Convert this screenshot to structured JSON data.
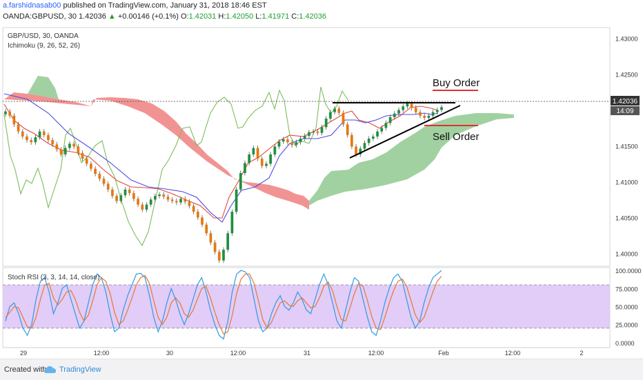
{
  "header": {
    "author": "a.farshidnasab00",
    "published_text": "published on TradingView.com, January 31, 2018 18:46 EST",
    "symbol": "OANDA:GBPUSD, 30",
    "last": "1.42036",
    "change": "+0.00146 (+0.1%)",
    "o_label": "O:",
    "o": "1.42031",
    "h_label": "H:",
    "h": "1.42050",
    "l_label": "L:",
    "l": "1.41971",
    "c_label": "C:",
    "c": "1.42036"
  },
  "chart_data": [
    {
      "type": "candlestick",
      "title": "GBP/USD, 30, OANDA",
      "indicator": "Ichimoku (9, 26, 52, 26)",
      "y_ticks": [
        "1.43000",
        "1.42500",
        "1.42036",
        "1.41500",
        "1.41000",
        "1.40500",
        "1.40000"
      ],
      "ylim": [
        1.3982,
        1.4315
      ],
      "current_price": "1.42036",
      "countdown": "14:09",
      "x_ticks": [
        "29",
        "12:00",
        "30",
        "12:00",
        "31",
        "12:00",
        "Feb",
        "12:00",
        "2"
      ],
      "annotations": [
        "Buy Order",
        "Sell Order"
      ],
      "candle_close": [
        1.4198,
        1.4192,
        1.418,
        1.417,
        1.4163,
        1.4158,
        1.4155,
        1.4162,
        1.417,
        1.4165,
        1.4158,
        1.4152,
        1.4145,
        1.4138,
        1.4147,
        1.4153,
        1.4149,
        1.414,
        1.4132,
        1.4125,
        1.4118,
        1.4111,
        1.4104,
        1.4097,
        1.4089,
        1.408,
        1.4073,
        1.4081,
        1.4089,
        1.4084,
        1.4076,
        1.4068,
        1.4061,
        1.4068,
        1.4075,
        1.408,
        1.4082,
        1.4079,
        1.4075,
        1.4073,
        1.4071,
        1.4076,
        1.4072,
        1.4066,
        1.4058,
        1.405,
        1.404,
        1.4028,
        1.4015,
        1.4002,
        1.399,
        1.4005,
        1.4028,
        1.4058,
        1.4089,
        1.4112,
        1.4126,
        1.4138,
        1.4147,
        1.4132,
        1.4122,
        1.4125,
        1.4138,
        1.4149,
        1.4156,
        1.4159,
        1.4155,
        1.4151,
        1.4155,
        1.416,
        1.4164,
        1.4169,
        1.417,
        1.4168,
        1.4176,
        1.4188,
        1.4197,
        1.4202,
        1.4196,
        1.418,
        1.4165,
        1.4149,
        1.4138,
        1.4146,
        1.4154,
        1.416,
        1.4163,
        1.417,
        1.4175,
        1.4182,
        1.419,
        1.4195,
        1.42,
        1.4205,
        1.4209,
        1.4203,
        1.4197,
        1.4192,
        1.4189,
        1.4192,
        1.4197,
        1.42,
        1.4204
      ],
      "ichimoku": {
        "tenkan": "red line",
        "kijun": "blue line",
        "chikou": "green lagging line",
        "cloud_bear_color": "#f08080",
        "cloud_bull_color": "#90c990"
      },
      "colors": {
        "up": "#1f8f3f",
        "down": "#e8770e",
        "wick": "#555555"
      }
    },
    {
      "type": "line",
      "title": "Stoch RSI (3, 3, 14, 14, close)",
      "y_ticks": [
        "100.0000",
        "75.0000",
        "50.0000",
        "25.0000",
        "0.0000"
      ],
      "ylim": [
        -5,
        102
      ],
      "band": [
        20,
        80
      ],
      "series": [
        {
          "color": "#2f9ae0",
          "values": [
            30,
            50,
            55,
            40,
            20,
            10,
            25,
            60,
            85,
            90,
            70,
            40,
            55,
            75,
            80,
            60,
            40,
            20,
            30,
            55,
            80,
            95,
            90,
            70,
            40,
            15,
            20,
            45,
            65,
            80,
            95,
            96,
            90,
            65,
            35,
            15,
            30,
            55,
            75,
            60,
            40,
            25,
            40,
            60,
            80,
            90,
            70,
            45,
            25,
            10,
            5,
            30,
            70,
            95,
            100,
            98,
            90,
            60,
            30,
            15,
            20,
            40,
            55,
            65,
            50,
            45,
            55,
            70,
            60,
            45,
            40,
            60,
            80,
            95,
            80,
            55,
            30,
            20,
            45,
            70,
            90,
            85,
            60,
            35,
            15,
            10,
            30,
            55,
            75,
            90,
            95,
            85,
            60,
            35,
            20,
            30,
            55,
            75,
            90,
            95,
            100
          ]
        },
        {
          "color": "#e8772e",
          "values": [
            35,
            42,
            50,
            48,
            35,
            22,
            20,
            35,
            60,
            80,
            82,
            62,
            52,
            60,
            70,
            72,
            60,
            42,
            30,
            38,
            58,
            80,
            90,
            85,
            68,
            42,
            25,
            30,
            45,
            62,
            80,
            90,
            93,
            82,
            58,
            35,
            25,
            35,
            55,
            62,
            55,
            40,
            35,
            45,
            60,
            75,
            78,
            62,
            42,
            25,
            12,
            15,
            38,
            68,
            88,
            95,
            95,
            82,
            58,
            32,
            20,
            28,
            42,
            55,
            58,
            52,
            50,
            58,
            62,
            55,
            48,
            50,
            62,
            78,
            84,
            72,
            50,
            32,
            30,
            48,
            68,
            82,
            78,
            58,
            36,
            20,
            18,
            35,
            55,
            72,
            85,
            88,
            78,
            58,
            38,
            28,
            35,
            52,
            70,
            85,
            92
          ]
        }
      ]
    }
  ],
  "footer": {
    "created_with": "Created with",
    "brand": "TradingView"
  }
}
